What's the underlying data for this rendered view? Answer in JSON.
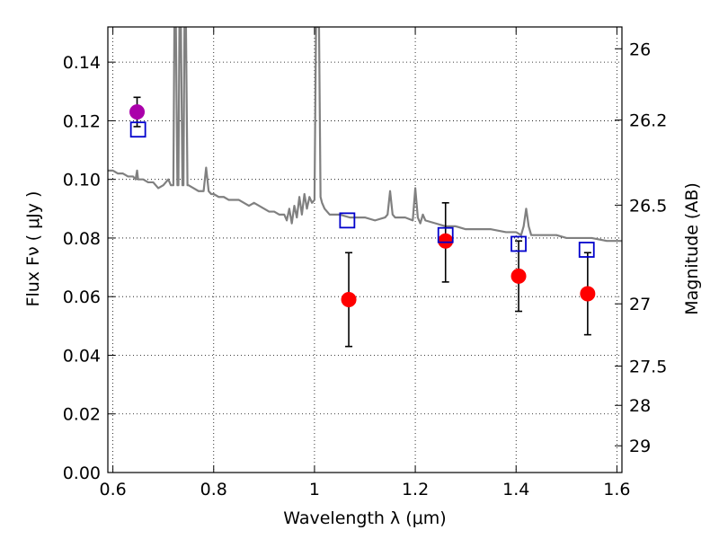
{
  "chart_data": {
    "type": "scatter",
    "title": "",
    "xlabel": "Wavelength  λ (μm)",
    "ylabel": "Flux  Fν  ( μJy )",
    "y2label": "Magnitude (AB)",
    "xlim": [
      0.59,
      1.61
    ],
    "ylim": [
      0.0,
      0.152
    ],
    "x_ticks": [
      0.6,
      0.8,
      1.0,
      1.2,
      1.4,
      1.6
    ],
    "x_tick_labels": [
      "0.6",
      "0.8",
      "1",
      "1.2",
      "1.4",
      "1.6"
    ],
    "y_ticks": [
      0.0,
      0.02,
      0.04,
      0.06,
      0.08,
      0.1,
      0.12,
      0.14
    ],
    "y_tick_labels": [
      "0.00",
      "0.02",
      "0.04",
      "0.06",
      "0.08",
      "0.10",
      "0.12",
      "0.14"
    ],
    "y2_ticks": [
      26,
      26.2,
      26.5,
      27,
      27.5,
      28,
      29
    ],
    "y2_tick_labels": [
      "26",
      "26.2",
      "26.5",
      "27",
      "27.5",
      "28",
      "29"
    ],
    "grid": true,
    "series": [
      {
        "kind": "line",
        "color": "#808080",
        "x": [
          0.59,
          0.6,
          0.61,
          0.62,
          0.63,
          0.64,
          0.645,
          0.648,
          0.65,
          0.655,
          0.66,
          0.67,
          0.68,
          0.69,
          0.7,
          0.71,
          0.715,
          0.72,
          0.722,
          0.725,
          0.728,
          0.73,
          0.732,
          0.735,
          0.738,
          0.74,
          0.742,
          0.745,
          0.748,
          0.75,
          0.76,
          0.77,
          0.78,
          0.785,
          0.79,
          0.795,
          0.8,
          0.81,
          0.82,
          0.83,
          0.84,
          0.85,
          0.86,
          0.87,
          0.88,
          0.89,
          0.9,
          0.91,
          0.92,
          0.93,
          0.94,
          0.945,
          0.95,
          0.955,
          0.96,
          0.965,
          0.97,
          0.975,
          0.98,
          0.985,
          0.99,
          0.995,
          1.0,
          1.003,
          1.006,
          1.009,
          1.012,
          1.015,
          1.02,
          1.03,
          1.05,
          1.07,
          1.1,
          1.12,
          1.14,
          1.145,
          1.15,
          1.155,
          1.16,
          1.18,
          1.195,
          1.2,
          1.205,
          1.21,
          1.215,
          1.22,
          1.24,
          1.26,
          1.28,
          1.3,
          1.32,
          1.35,
          1.38,
          1.4,
          1.41,
          1.415,
          1.42,
          1.425,
          1.43,
          1.45,
          1.48,
          1.5,
          1.52,
          1.55,
          1.58,
          1.6,
          1.61
        ],
        "y": [
          0.103,
          0.103,
          0.102,
          0.102,
          0.101,
          0.101,
          0.1,
          0.103,
          0.1,
          0.1,
          0.1,
          0.099,
          0.099,
          0.097,
          0.098,
          0.1,
          0.098,
          0.098,
          0.152,
          0.152,
          0.098,
          0.098,
          0.152,
          0.152,
          0.098,
          0.098,
          0.152,
          0.152,
          0.098,
          0.098,
          0.097,
          0.096,
          0.096,
          0.104,
          0.096,
          0.095,
          0.095,
          0.094,
          0.094,
          0.093,
          0.093,
          0.093,
          0.092,
          0.091,
          0.092,
          0.091,
          0.09,
          0.089,
          0.089,
          0.088,
          0.088,
          0.086,
          0.09,
          0.085,
          0.091,
          0.087,
          0.094,
          0.088,
          0.095,
          0.09,
          0.094,
          0.092,
          0.093,
          0.152,
          0.152,
          0.152,
          0.094,
          0.092,
          0.09,
          0.088,
          0.088,
          0.087,
          0.087,
          0.086,
          0.087,
          0.088,
          0.096,
          0.088,
          0.087,
          0.087,
          0.086,
          0.097,
          0.087,
          0.085,
          0.088,
          0.086,
          0.085,
          0.084,
          0.084,
          0.083,
          0.083,
          0.083,
          0.082,
          0.082,
          0.081,
          0.084,
          0.09,
          0.084,
          0.081,
          0.081,
          0.081,
          0.08,
          0.08,
          0.08,
          0.079,
          0.079,
          0.079
        ]
      },
      {
        "kind": "points",
        "marker": "circle",
        "x": [
          0.648
        ],
        "y": [
          0.123
        ],
        "yerr": [
          0.005
        ],
        "color": "#aa00aa"
      },
      {
        "kind": "points",
        "marker": "circle",
        "x": [
          1.068,
          1.26,
          1.405,
          1.542
        ],
        "y": [
          0.059,
          0.079,
          0.067,
          0.061
        ],
        "yerr_low": [
          0.016,
          0.014,
          0.012,
          0.014
        ],
        "yerr_high": [
          0.016,
          0.013,
          0.012,
          0.014
        ],
        "color": "#ff0000"
      },
      {
        "kind": "points",
        "marker": "open-square",
        "x": [
          0.65,
          1.065,
          1.26,
          1.405,
          1.54
        ],
        "y": [
          0.117,
          0.086,
          0.081,
          0.078,
          0.076
        ],
        "color": "#0000cc"
      }
    ]
  }
}
